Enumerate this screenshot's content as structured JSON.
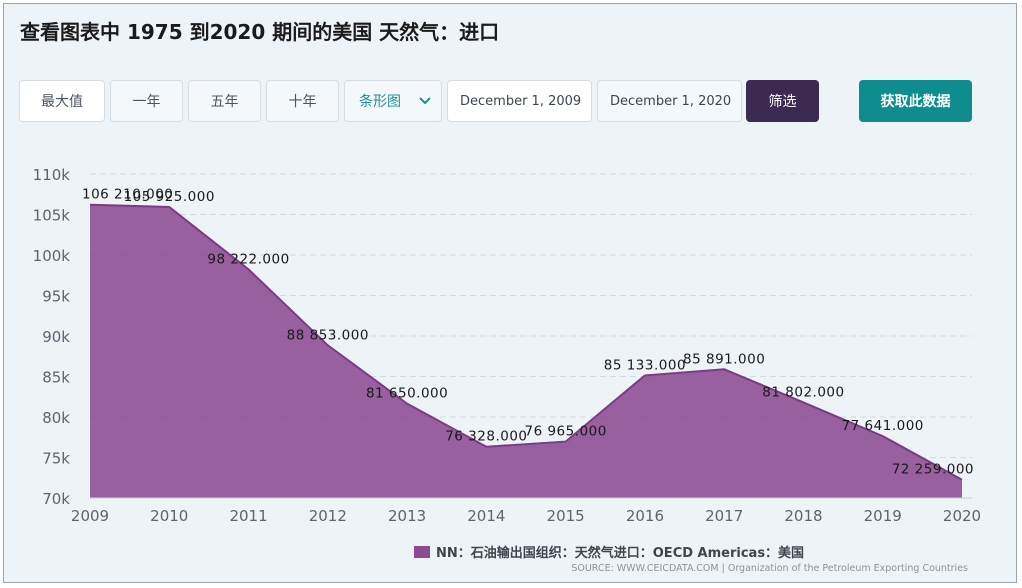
{
  "title": "查看图表中 1975 到2020 期间的美国 天然气：进口",
  "toolbar": {
    "range_buttons": [
      "最大值",
      "一年",
      "五年",
      "十年"
    ],
    "chart_type_select": "条形图",
    "start_date": "December 1, 2009",
    "end_date": "December 1, 2020",
    "filter_label": "筛选",
    "get_data_label": "获取此数据"
  },
  "colors": {
    "series_fill": "#8c4b92",
    "filter_button": "#3b2a52",
    "get_data_button": "#0f8d8e"
  },
  "legend_label": "NN：石油输出国组织：天然气进口：OECD Americas：美国",
  "source": "SOURCE: WWW.CEICDATA.COM | Organization of the Petroleum Exporting Countries",
  "chart_data": {
    "type": "area",
    "x": [
      "2009",
      "2010",
      "2011",
      "2012",
      "2013",
      "2014",
      "2015",
      "2016",
      "2017",
      "2018",
      "2019",
      "2020"
    ],
    "series": [
      {
        "name": "NN：石油输出国组织：天然气进口：OECD Americas：美国",
        "values": [
          106210,
          105925,
          98222,
          88853,
          81650,
          76328,
          76965,
          85133,
          85891,
          81802,
          77641,
          72259
        ],
        "labels": [
          "106 210.000",
          "105 925.000",
          "98 222.000",
          "88 853.000",
          "81 650.000",
          "76 328.000",
          "76 965.000",
          "85 133.000",
          "85 891.000",
          "81 802.000",
          "77 641.000",
          "72 259.000"
        ]
      }
    ],
    "y_ticks": [
      "70k",
      "75k",
      "80k",
      "85k",
      "90k",
      "95k",
      "100k",
      "105k",
      "110k"
    ],
    "ylim": [
      70000,
      110000
    ],
    "grid": true,
    "legend_position": "bottom"
  }
}
